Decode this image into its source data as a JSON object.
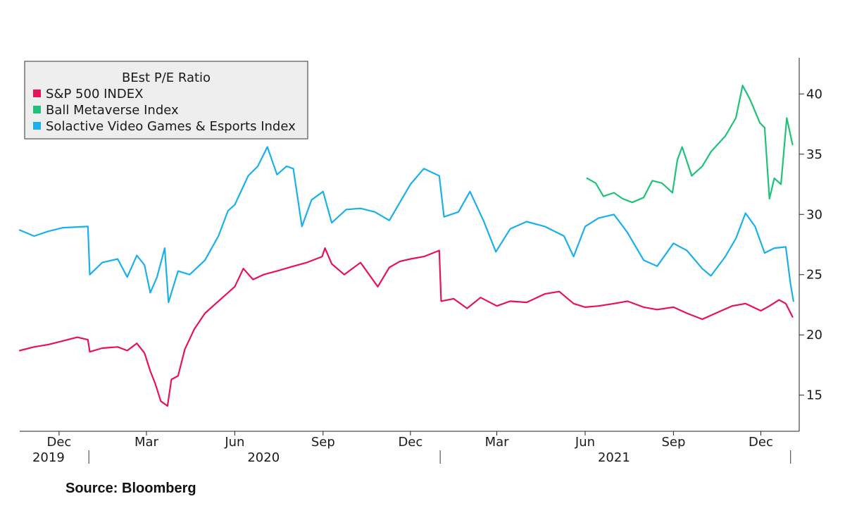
{
  "source": "Source: Bloomberg",
  "chart_data": {
    "type": "line",
    "title": "",
    "xlabel": "",
    "ylabel": "",
    "ylim": [
      12,
      43
    ],
    "xlim": [
      "2019-10-21",
      "2022-01-10"
    ],
    "yticks": [
      15,
      20,
      25,
      30,
      35,
      40
    ],
    "month_ticks": [
      {
        "label": "Dec",
        "date": "2019-12-01"
      },
      {
        "label": "Mar",
        "date": "2020-03-01"
      },
      {
        "label": "Jun",
        "date": "2020-06-01"
      },
      {
        "label": "Sep",
        "date": "2020-09-01"
      },
      {
        "label": "Dec",
        "date": "2020-12-01"
      },
      {
        "label": "Mar",
        "date": "2021-03-01"
      },
      {
        "label": "Jun",
        "date": "2021-06-01"
      },
      {
        "label": "Sep",
        "date": "2021-09-01"
      },
      {
        "label": "Dec",
        "date": "2021-12-01"
      }
    ],
    "year_labels": [
      {
        "label": "2019",
        "date": "2019-11-20"
      },
      {
        "label": "2020",
        "date": "2020-07-01"
      },
      {
        "label": "2021",
        "date": "2021-07-01"
      }
    ],
    "year_separators": [
      "2020-01-01",
      "2021-01-01",
      "2022-01-01"
    ],
    "legend": {
      "title": "BEst P/E Ratio",
      "position": "top-left",
      "entries": [
        "S&P 500 INDEX",
        "Ball Metaverse Index",
        "Solactive Video Games & Esports Index"
      ]
    },
    "series": [
      {
        "name": "S&P 500 INDEX",
        "color": "#e8115b",
        "points": [
          [
            "2019-10-21",
            18.7
          ],
          [
            "2019-11-05",
            19.0
          ],
          [
            "2019-11-20",
            19.2
          ],
          [
            "2019-12-05",
            19.5
          ],
          [
            "2019-12-20",
            19.8
          ],
          [
            "2019-12-31",
            19.6
          ],
          [
            "2020-01-02",
            18.6
          ],
          [
            "2020-01-15",
            18.9
          ],
          [
            "2020-01-31",
            19.0
          ],
          [
            "2020-02-10",
            18.7
          ],
          [
            "2020-02-20",
            19.3
          ],
          [
            "2020-02-28",
            18.5
          ],
          [
            "2020-03-05",
            17.0
          ],
          [
            "2020-03-10",
            16.0
          ],
          [
            "2020-03-16",
            14.5
          ],
          [
            "2020-03-23",
            14.1
          ],
          [
            "2020-03-27",
            16.3
          ],
          [
            "2020-04-03",
            16.6
          ],
          [
            "2020-04-10",
            18.8
          ],
          [
            "2020-04-20",
            20.5
          ],
          [
            "2020-05-01",
            21.8
          ],
          [
            "2020-05-15",
            22.8
          ],
          [
            "2020-06-01",
            24.0
          ],
          [
            "2020-06-10",
            25.5
          ],
          [
            "2020-06-20",
            24.6
          ],
          [
            "2020-07-01",
            25.0
          ],
          [
            "2020-07-15",
            25.3
          ],
          [
            "2020-08-01",
            25.7
          ],
          [
            "2020-08-15",
            26.0
          ],
          [
            "2020-08-31",
            26.5
          ],
          [
            "2020-09-03",
            27.2
          ],
          [
            "2020-09-10",
            25.9
          ],
          [
            "2020-09-23",
            25.0
          ],
          [
            "2020-10-10",
            26.0
          ],
          [
            "2020-10-28",
            24.0
          ],
          [
            "2020-11-09",
            25.6
          ],
          [
            "2020-11-20",
            26.1
          ],
          [
            "2020-12-01",
            26.3
          ],
          [
            "2020-12-15",
            26.5
          ],
          [
            "2020-12-31",
            27.0
          ],
          [
            "2021-01-02",
            22.8
          ],
          [
            "2021-01-15",
            23.0
          ],
          [
            "2021-01-29",
            22.2
          ],
          [
            "2021-02-12",
            23.1
          ],
          [
            "2021-03-01",
            22.4
          ],
          [
            "2021-03-15",
            22.8
          ],
          [
            "2021-04-01",
            22.7
          ],
          [
            "2021-04-20",
            23.4
          ],
          [
            "2021-05-05",
            23.6
          ],
          [
            "2021-05-20",
            22.6
          ],
          [
            "2021-06-01",
            22.3
          ],
          [
            "2021-06-15",
            22.4
          ],
          [
            "2021-07-01",
            22.6
          ],
          [
            "2021-07-15",
            22.8
          ],
          [
            "2021-08-01",
            22.3
          ],
          [
            "2021-08-15",
            22.1
          ],
          [
            "2021-09-01",
            22.3
          ],
          [
            "2021-09-15",
            21.8
          ],
          [
            "2021-10-01",
            21.3
          ],
          [
            "2021-10-15",
            21.8
          ],
          [
            "2021-11-01",
            22.4
          ],
          [
            "2021-11-15",
            22.6
          ],
          [
            "2021-12-01",
            22.0
          ],
          [
            "2021-12-10",
            22.4
          ],
          [
            "2021-12-20",
            22.9
          ],
          [
            "2021-12-27",
            22.6
          ],
          [
            "2022-01-03",
            21.5
          ]
        ]
      },
      {
        "name": "Ball Metaverse Index",
        "color": "#1fc27a",
        "points": [
          [
            "2021-06-03",
            33.0
          ],
          [
            "2021-06-12",
            32.6
          ],
          [
            "2021-06-20",
            31.5
          ],
          [
            "2021-07-01",
            31.8
          ],
          [
            "2021-07-10",
            31.3
          ],
          [
            "2021-07-20",
            31.0
          ],
          [
            "2021-08-01",
            31.4
          ],
          [
            "2021-08-10",
            32.8
          ],
          [
            "2021-08-20",
            32.6
          ],
          [
            "2021-08-31",
            31.8
          ],
          [
            "2021-09-05",
            34.5
          ],
          [
            "2021-09-10",
            35.6
          ],
          [
            "2021-09-20",
            33.2
          ],
          [
            "2021-10-01",
            34.0
          ],
          [
            "2021-10-10",
            35.2
          ],
          [
            "2021-10-25",
            36.5
          ],
          [
            "2021-11-05",
            38.0
          ],
          [
            "2021-11-12",
            40.7
          ],
          [
            "2021-11-20",
            39.5
          ],
          [
            "2021-11-30",
            37.6
          ],
          [
            "2021-12-05",
            37.2
          ],
          [
            "2021-12-10",
            31.3
          ],
          [
            "2021-12-15",
            33.0
          ],
          [
            "2021-12-22",
            32.5
          ],
          [
            "2021-12-28",
            38.0
          ],
          [
            "2022-01-03",
            35.8
          ]
        ]
      },
      {
        "name": "Solactive Video Games & Esports Index",
        "color": "#1ab0ec",
        "points": [
          [
            "2019-10-21",
            28.7
          ],
          [
            "2019-11-05",
            28.2
          ],
          [
            "2019-11-20",
            28.6
          ],
          [
            "2019-12-05",
            28.9
          ],
          [
            "2019-12-31",
            29.0
          ],
          [
            "2020-01-02",
            25.0
          ],
          [
            "2020-01-15",
            26.0
          ],
          [
            "2020-01-31",
            26.3
          ],
          [
            "2020-02-10",
            24.8
          ],
          [
            "2020-02-20",
            26.6
          ],
          [
            "2020-02-28",
            25.8
          ],
          [
            "2020-03-05",
            23.5
          ],
          [
            "2020-03-12",
            24.8
          ],
          [
            "2020-03-20",
            27.2
          ],
          [
            "2020-03-24",
            22.7
          ],
          [
            "2020-04-03",
            25.3
          ],
          [
            "2020-04-15",
            25.0
          ],
          [
            "2020-05-01",
            26.2
          ],
          [
            "2020-05-15",
            28.2
          ],
          [
            "2020-05-25",
            30.3
          ],
          [
            "2020-06-01",
            30.8
          ],
          [
            "2020-06-08",
            32.0
          ],
          [
            "2020-06-15",
            33.2
          ],
          [
            "2020-06-25",
            34.0
          ],
          [
            "2020-07-05",
            35.6
          ],
          [
            "2020-07-15",
            33.3
          ],
          [
            "2020-07-25",
            34.0
          ],
          [
            "2020-08-01",
            33.8
          ],
          [
            "2020-08-10",
            29.0
          ],
          [
            "2020-08-20",
            31.2
          ],
          [
            "2020-09-01",
            31.9
          ],
          [
            "2020-09-10",
            29.3
          ],
          [
            "2020-09-25",
            30.4
          ],
          [
            "2020-10-10",
            30.5
          ],
          [
            "2020-10-25",
            30.2
          ],
          [
            "2020-11-09",
            29.5
          ],
          [
            "2020-11-20",
            31.0
          ],
          [
            "2020-12-01",
            32.5
          ],
          [
            "2020-12-15",
            33.8
          ],
          [
            "2020-12-31",
            33.2
          ],
          [
            "2021-01-05",
            29.8
          ],
          [
            "2021-01-20",
            30.2
          ],
          [
            "2021-02-01",
            31.9
          ],
          [
            "2021-02-15",
            29.5
          ],
          [
            "2021-02-28",
            26.9
          ],
          [
            "2021-03-15",
            28.8
          ],
          [
            "2021-04-01",
            29.4
          ],
          [
            "2021-04-20",
            29.0
          ],
          [
            "2021-05-10",
            28.2
          ],
          [
            "2021-05-20",
            26.5
          ],
          [
            "2021-06-01",
            29.0
          ],
          [
            "2021-06-15",
            29.7
          ],
          [
            "2021-07-01",
            30.0
          ],
          [
            "2021-07-15",
            28.5
          ],
          [
            "2021-08-01",
            26.2
          ],
          [
            "2021-08-15",
            25.7
          ],
          [
            "2021-09-01",
            27.6
          ],
          [
            "2021-09-15",
            27.0
          ],
          [
            "2021-10-01",
            25.5
          ],
          [
            "2021-10-10",
            24.9
          ],
          [
            "2021-10-25",
            26.5
          ],
          [
            "2021-11-05",
            28.0
          ],
          [
            "2021-11-15",
            30.1
          ],
          [
            "2021-11-25",
            29.0
          ],
          [
            "2021-12-05",
            26.8
          ],
          [
            "2021-12-15",
            27.2
          ],
          [
            "2021-12-27",
            27.3
          ],
          [
            "2022-01-01",
            24.2
          ],
          [
            "2022-01-04",
            22.8
          ]
        ]
      }
    ]
  }
}
